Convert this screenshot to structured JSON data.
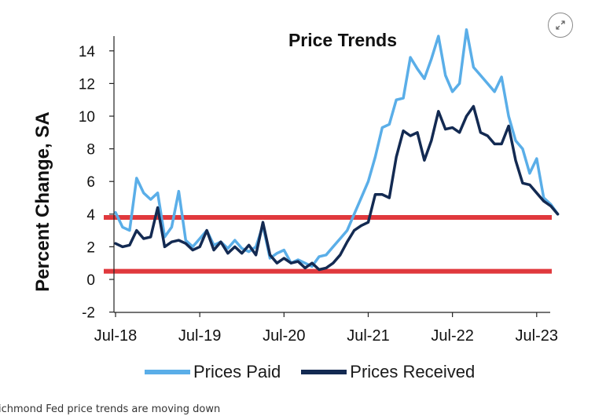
{
  "chart_data": {
    "type": "line",
    "title": "Price Trends",
    "xlabel": "",
    "ylabel": "Percent Change, SA",
    "ylim": [
      -2,
      15
    ],
    "yticks": [
      -2,
      0,
      2,
      4,
      6,
      8,
      10,
      12,
      14
    ],
    "ytick_labels": [
      "-2",
      "0",
      "2",
      "4",
      "6",
      "8",
      "10",
      "12",
      "14"
    ],
    "xlim": [
      0,
      61
    ],
    "xticks": [
      0,
      12,
      24,
      36,
      48,
      60
    ],
    "xtick_labels": [
      "Jul-18",
      "Jul-19",
      "Jul-20",
      "Jul-21",
      "Jul-22",
      "Jul-23"
    ],
    "x_unit": "months since Jul-18",
    "series": [
      {
        "name": "Prices Paid",
        "color": "#5aaee8",
        "values": [
          4.1,
          3.2,
          3.0,
          6.2,
          5.3,
          4.9,
          5.3,
          2.6,
          3.2,
          5.4,
          2.4,
          2.0,
          2.5,
          3.0,
          2.1,
          2.3,
          1.9,
          2.4,
          1.9,
          1.7,
          2.0,
          3.3,
          1.3,
          1.6,
          1.8,
          1.0,
          1.2,
          1.0,
          0.8,
          1.4,
          1.5,
          2.0,
          2.5,
          3.0,
          4.0,
          5.0,
          6.0,
          7.5,
          9.3,
          9.5,
          11.0,
          11.1,
          13.6,
          12.9,
          12.3,
          13.5,
          14.9,
          12.5,
          11.5,
          12.0,
          15.3,
          13.0,
          12.5,
          12.0,
          11.5,
          12.4,
          10.0,
          8.5,
          8.0,
          6.5,
          7.4,
          5.0,
          4.6,
          4.0
        ]
      },
      {
        "name": "Prices Received",
        "color": "#132a52",
        "values": [
          2.2,
          2.0,
          2.1,
          3.0,
          2.5,
          2.6,
          4.4,
          2.0,
          2.3,
          2.4,
          2.2,
          1.8,
          2.0,
          3.0,
          1.8,
          2.3,
          1.6,
          2.0,
          1.6,
          2.1,
          1.5,
          3.5,
          1.5,
          1.0,
          1.3,
          1.0,
          1.1,
          0.7,
          1.0,
          0.6,
          0.7,
          1.0,
          1.5,
          2.3,
          3.0,
          3.3,
          3.5,
          5.2,
          5.2,
          5.0,
          7.5,
          9.1,
          8.8,
          9.0,
          7.3,
          8.5,
          10.3,
          9.2,
          9.3,
          9.0,
          10.0,
          10.6,
          9.0,
          8.8,
          8.3,
          8.3,
          9.4,
          7.3,
          5.9,
          5.8,
          5.3,
          4.8,
          4.5,
          4.0
        ]
      }
    ],
    "reference_lines": [
      {
        "y": 3.8,
        "color": "#e0393d"
      },
      {
        "y": 0.5,
        "color": "#e0393d"
      }
    ],
    "legend": [
      "Prices Paid",
      "Prices Received"
    ],
    "legend_position": "bottom"
  },
  "caption": "ichmond Fed price trends are moving down",
  "expand_icon": "expand-arrows-icon"
}
